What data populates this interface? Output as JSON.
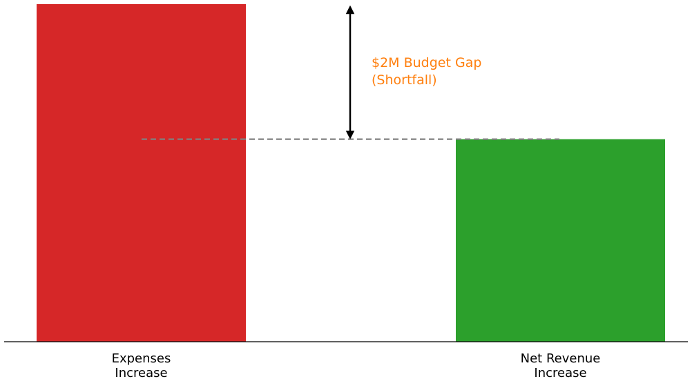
{
  "chart_data": {
    "type": "bar",
    "categories": [
      "Expenses\nIncrease",
      "Net Revenue\nIncrease"
    ],
    "values": [
      5,
      3
    ],
    "ylim": [
      0,
      5
    ],
    "grid": false,
    "legend": "none",
    "colors": [
      "#d62728",
      "#2ca02c"
    ],
    "annotations": [
      {
        "text": "$2M Budget Gap\n(Shortfall)",
        "from": 5,
        "to": 3,
        "color": "#ff7f0e"
      }
    ],
    "reference_line": {
      "y": 3,
      "color": "#808080",
      "style": "dashed"
    }
  }
}
